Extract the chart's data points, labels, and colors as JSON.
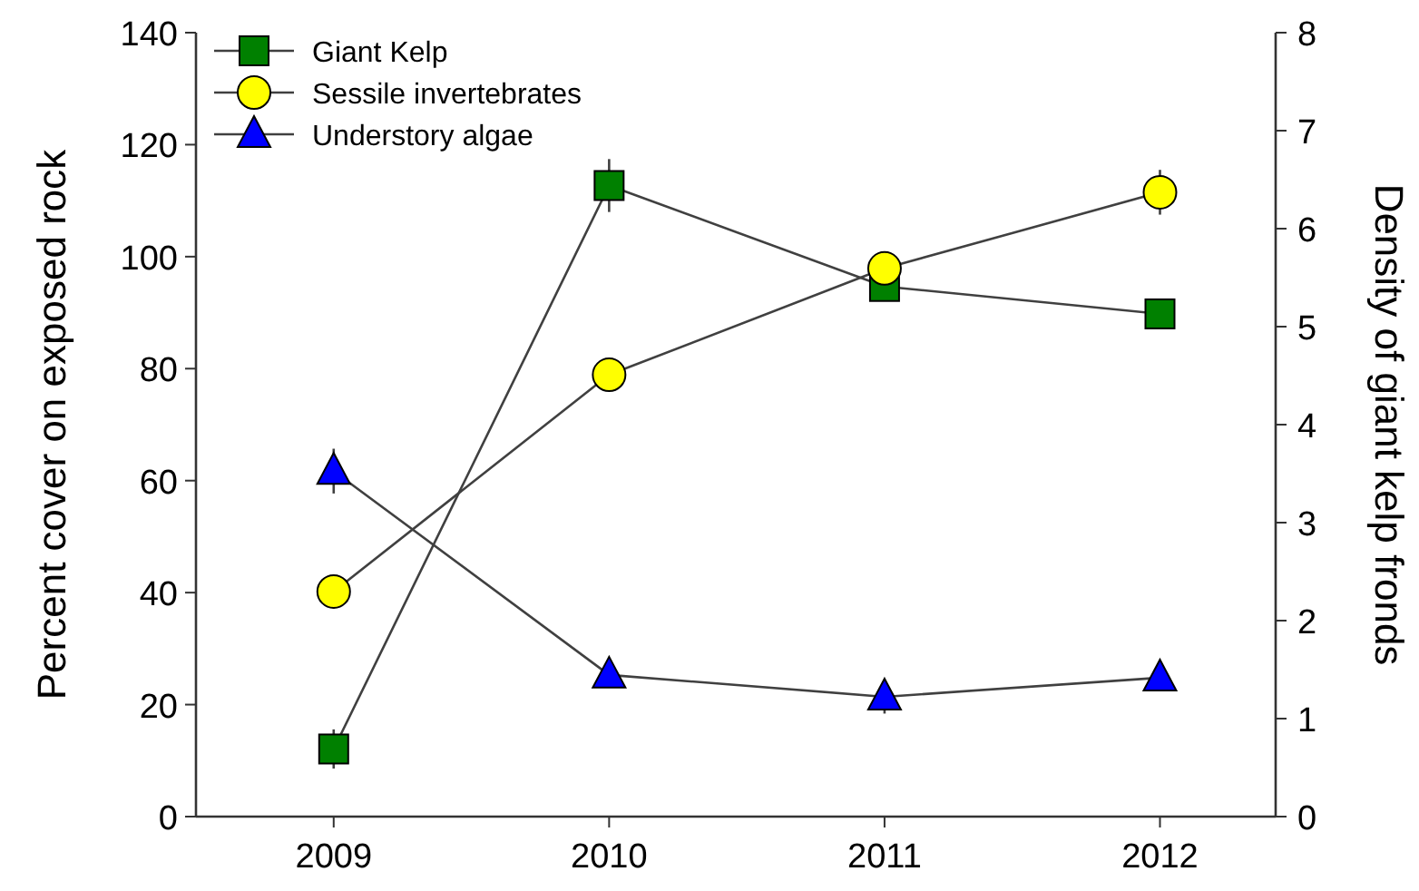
{
  "chart_data": {
    "type": "line",
    "x": [
      2009,
      2010,
      2011,
      2012
    ],
    "xlim": [
      2008.5,
      2012.42
    ],
    "xticks": [
      2009,
      2010,
      2011,
      2012
    ],
    "ylabel": "Percent cover on exposed rock",
    "y2label": "Density of giant kelp fronds",
    "ylim": [
      0,
      140
    ],
    "yticks": [
      0,
      20,
      40,
      60,
      80,
      100,
      120,
      140
    ],
    "y2lim": [
      0,
      8
    ],
    "y2ticks": [
      0,
      1,
      2,
      3,
      4,
      5,
      6,
      7,
      8
    ],
    "legend": "top left",
    "grid": false,
    "series": [
      {
        "name": "Giant Kelp",
        "color": "#008000",
        "marker": "square",
        "axis": "y2",
        "values": [
          0.69,
          6.44,
          5.41,
          5.13
        ],
        "errors": [
          0.2,
          0.27,
          0.15,
          0.15
        ]
      },
      {
        "name": "Sessile invertebrates",
        "color": "#ffff00",
        "marker": "circle",
        "values": [
          40.2,
          78.9,
          97.9,
          111.5
        ],
        "errors": [
          3,
          null,
          null,
          4
        ]
      },
      {
        "name": "Understory algae",
        "color": "#0000ff",
        "marker": "triangle",
        "values": [
          61.7,
          25.3,
          21.4,
          24.8
        ],
        "errors": [
          4,
          null,
          3,
          null
        ]
      }
    ]
  }
}
